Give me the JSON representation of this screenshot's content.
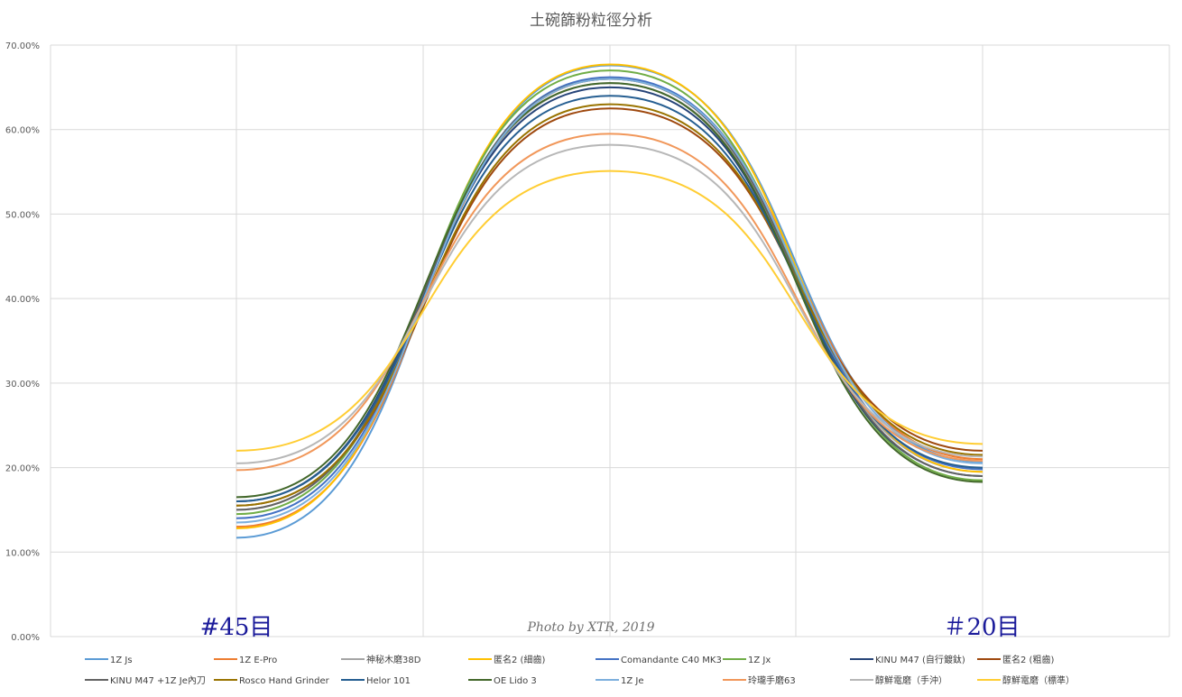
{
  "chart_data": {
    "type": "line",
    "title": "土碗篩粉粒徑分析",
    "xlabel": "",
    "ylabel": "",
    "ylim": [
      0,
      0.7
    ],
    "y_ticks": [
      {
        "value": 0.0,
        "label": "0.00%"
      },
      {
        "value": 0.1,
        "label": "10.00%"
      },
      {
        "value": 0.2,
        "label": "20.00%"
      },
      {
        "value": 0.3,
        "label": "30.00%"
      },
      {
        "value": 0.4,
        "label": "40.00%"
      },
      {
        "value": 0.5,
        "label": "50.00%"
      },
      {
        "value": 0.6,
        "label": "60.00%"
      },
      {
        "value": 0.7,
        "label": "70.00%"
      }
    ],
    "x": [
      "#45目",
      "",
      "#20目"
    ],
    "grid": true,
    "smooth": true,
    "legend_position": "bottom",
    "annotations": [
      "#45目",
      "Photo by XTR, 2019",
      "＃20目"
    ],
    "series": [
      {
        "name": "1Z Js",
        "color": "#5b9bd5",
        "values": [
          0.117,
          0.676,
          0.207
        ]
      },
      {
        "name": "1Z E-Pro",
        "color": "#ed7d31",
        "values": [
          0.13,
          0.66,
          0.21
        ]
      },
      {
        "name": "神秘木磨38D",
        "color": "#a5a5a5",
        "values": [
          0.15,
          0.655,
          0.195
        ]
      },
      {
        "name": "匿名2 (細齒)",
        "color": "#ffc000",
        "values": [
          0.128,
          0.677,
          0.195
        ]
      },
      {
        "name": "Comandante C40 MK3",
        "color": "#4472c4",
        "values": [
          0.14,
          0.662,
          0.198
        ]
      },
      {
        "name": "1Z Jx",
        "color": "#70ad47",
        "values": [
          0.145,
          0.67,
          0.185
        ]
      },
      {
        "name": "KINU M47 (自行鍍鈦)",
        "color": "#264478",
        "values": [
          0.16,
          0.65,
          0.19
        ]
      },
      {
        "name": "匿名2 (粗齒)",
        "color": "#9e480e",
        "values": [
          0.155,
          0.625,
          0.22
        ]
      },
      {
        "name": "KINU M47 +1Z Je內刀",
        "color": "#636363",
        "values": [
          0.15,
          0.66,
          0.19
        ]
      },
      {
        "name": "Rosco Hand Grinder",
        "color": "#997300",
        "values": [
          0.155,
          0.63,
          0.215
        ]
      },
      {
        "name": "Helor 101",
        "color": "#255e91",
        "values": [
          0.16,
          0.64,
          0.2
        ]
      },
      {
        "name": "OE Lido 3",
        "color": "#43682b",
        "values": [
          0.165,
          0.655,
          0.183
        ]
      },
      {
        "name": "1Z Je",
        "color": "#7cafdd",
        "values": [
          0.135,
          0.66,
          0.205
        ]
      },
      {
        "name": "玲瓏手磨63",
        "color": "#f1975a",
        "values": [
          0.197,
          0.595,
          0.208
        ]
      },
      {
        "name": "醇鮮電磨（手沖）",
        "color": "#b7b7b7",
        "values": [
          0.205,
          0.582,
          0.213
        ]
      },
      {
        "name": "醇鮮電磨（標準）",
        "color": "#ffcd33",
        "values": [
          0.22,
          0.551,
          0.228
        ]
      }
    ]
  }
}
